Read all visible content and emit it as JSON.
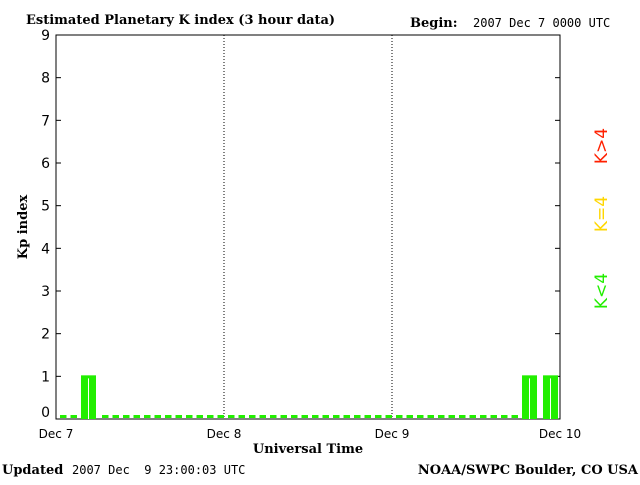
{
  "header": {
    "title": "Estimated Planetary K index (3 hour data)",
    "begin_label": "Begin:",
    "begin_value": "2007 Dec 7 0000 UTC"
  },
  "footer": {
    "updated_label": "Updated",
    "updated_value": "2007 Dec  9 23:00:03 UTC",
    "source": "NOAA/SWPC Boulder, CO USA"
  },
  "legend": {
    "items": [
      {
        "label": "K>4",
        "color": "#ff2000"
      },
      {
        "label": "K=4",
        "color": "#ffd700"
      },
      {
        "label": "K<4",
        "color": "#22ee00"
      }
    ]
  },
  "chart_data": {
    "type": "bar",
    "title": "Estimated Planetary K index (3 hour data)",
    "xlabel": "Universal Time",
    "ylabel": "Kp index",
    "ylim": [
      0,
      9
    ],
    "yticks": [
      0,
      1,
      2,
      3,
      4,
      5,
      6,
      7,
      8,
      9
    ],
    "xticks": [
      "Dec 7",
      "Dec 8",
      "Dec 9",
      "Dec 10"
    ],
    "bin_hours": 3,
    "series": [
      {
        "values": [
          0,
          1,
          0,
          0,
          0,
          0,
          0,
          0,
          0,
          0,
          0,
          0,
          0,
          0,
          0,
          0,
          0,
          0,
          0,
          0,
          0,
          0,
          1,
          1
        ]
      }
    ],
    "colors": {
      "low": "#22ee00",
      "storm_threshold": 4
    },
    "grid": "vertical day separators"
  }
}
